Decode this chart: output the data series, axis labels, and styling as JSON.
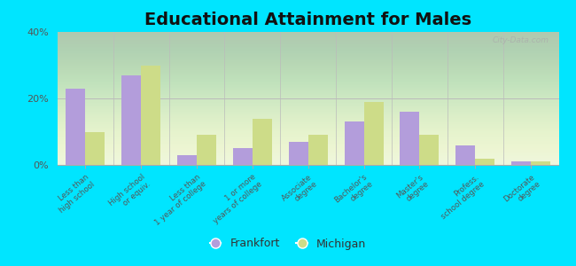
{
  "title": "Educational Attainment for Males",
  "categories": [
    "Less than\nhigh school",
    "High school\nor equiv.",
    "Less than\n1 year of college",
    "1 or more\nyears of college",
    "Associate\ndegree",
    "Bachelor's\ndegree",
    "Master's\ndegree",
    "Profess.\nschool degree",
    "Doctorate\ndegree"
  ],
  "frankfort": [
    23,
    27,
    3,
    5,
    7,
    13,
    16,
    6,
    1
  ],
  "michigan": [
    10,
    30,
    9,
    14,
    9,
    19,
    9,
    2,
    1
  ],
  "frankfort_color": "#b39ddb",
  "michigan_color": "#cddc88",
  "plot_bg_top": "#f0f4e0",
  "plot_bg_bottom": "#d8edcc",
  "outer_background": "#00e5ff",
  "ylim": [
    0,
    40
  ],
  "yticks": [
    0,
    20,
    40
  ],
  "ytick_labels": [
    "0%",
    "20%",
    "40%"
  ],
  "bar_width": 0.35,
  "title_fontsize": 14,
  "legend_frankfort": "Frankfort",
  "legend_michigan": "Michigan"
}
